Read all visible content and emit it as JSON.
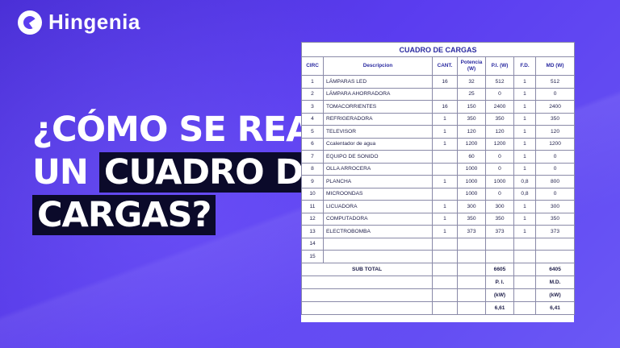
{
  "brand": {
    "name": "Hingenia",
    "logo_icon": "hingenia-logo-icon"
  },
  "headline": {
    "line1": "¿Cómo se realiza",
    "line2_plain": "un",
    "line2_highlight": "cuadro de",
    "line3_highlight": "cargas?"
  },
  "table": {
    "title": "CUADRO DE CARGAS",
    "headers": [
      "CIRC",
      "Descripcion",
      "CANT.",
      "Potencia (W)",
      "P.I. (W)",
      "F.D.",
      "MD (W)"
    ],
    "rows": [
      [
        "1",
        "LÁMPARAS LED",
        "16",
        "32",
        "512",
        "1",
        "512"
      ],
      [
        "2",
        "LÁMPARA AHORRADORA",
        "",
        "25",
        "0",
        "1",
        "0"
      ],
      [
        "3",
        "TOMACORRIENTES",
        "16",
        "150",
        "2400",
        "1",
        "2400"
      ],
      [
        "4",
        "REFRIGERADORA",
        "1",
        "350",
        "350",
        "1",
        "350"
      ],
      [
        "5",
        "TELEVISOR",
        "1",
        "120",
        "120",
        "1",
        "120"
      ],
      [
        "6",
        "Ccalentador de agua",
        "1",
        "1200",
        "1200",
        "1",
        "1200"
      ],
      [
        "7",
        "EQUIPO DE SONIDO",
        "",
        "60",
        "0",
        "1",
        "0"
      ],
      [
        "8",
        "OLLA ARROCERA",
        "",
        "1000",
        "0",
        "1",
        "0"
      ],
      [
        "9",
        "PLANCHA",
        "1",
        "1000",
        "1000",
        "0,8",
        "800"
      ],
      [
        "10",
        "MICROONDAS",
        "",
        "1000",
        "0",
        "0,8",
        "0"
      ],
      [
        "11",
        "LICUADORA",
        "1",
        "300",
        "300",
        "1",
        "300"
      ],
      [
        "12",
        "COMPUTADORA",
        "1",
        "350",
        "350",
        "1",
        "350"
      ],
      [
        "13",
        "ELECTROBOMBA",
        "1",
        "373",
        "373",
        "1",
        "373"
      ],
      [
        "14",
        "",
        "",
        "",
        "",
        "",
        ""
      ],
      [
        "15",
        "",
        "",
        "",
        "",
        "",
        ""
      ]
    ],
    "subtotal": {
      "label": "SUB TOTAL",
      "pi": "6605",
      "md": "6405"
    },
    "summary_labels": {
      "pi": "P. I.",
      "md": "M.D."
    },
    "summary_units": {
      "pi": "(kW)",
      "md": "(kW)"
    },
    "summary_values": {
      "pi": "6,61",
      "md": "6,41"
    }
  }
}
